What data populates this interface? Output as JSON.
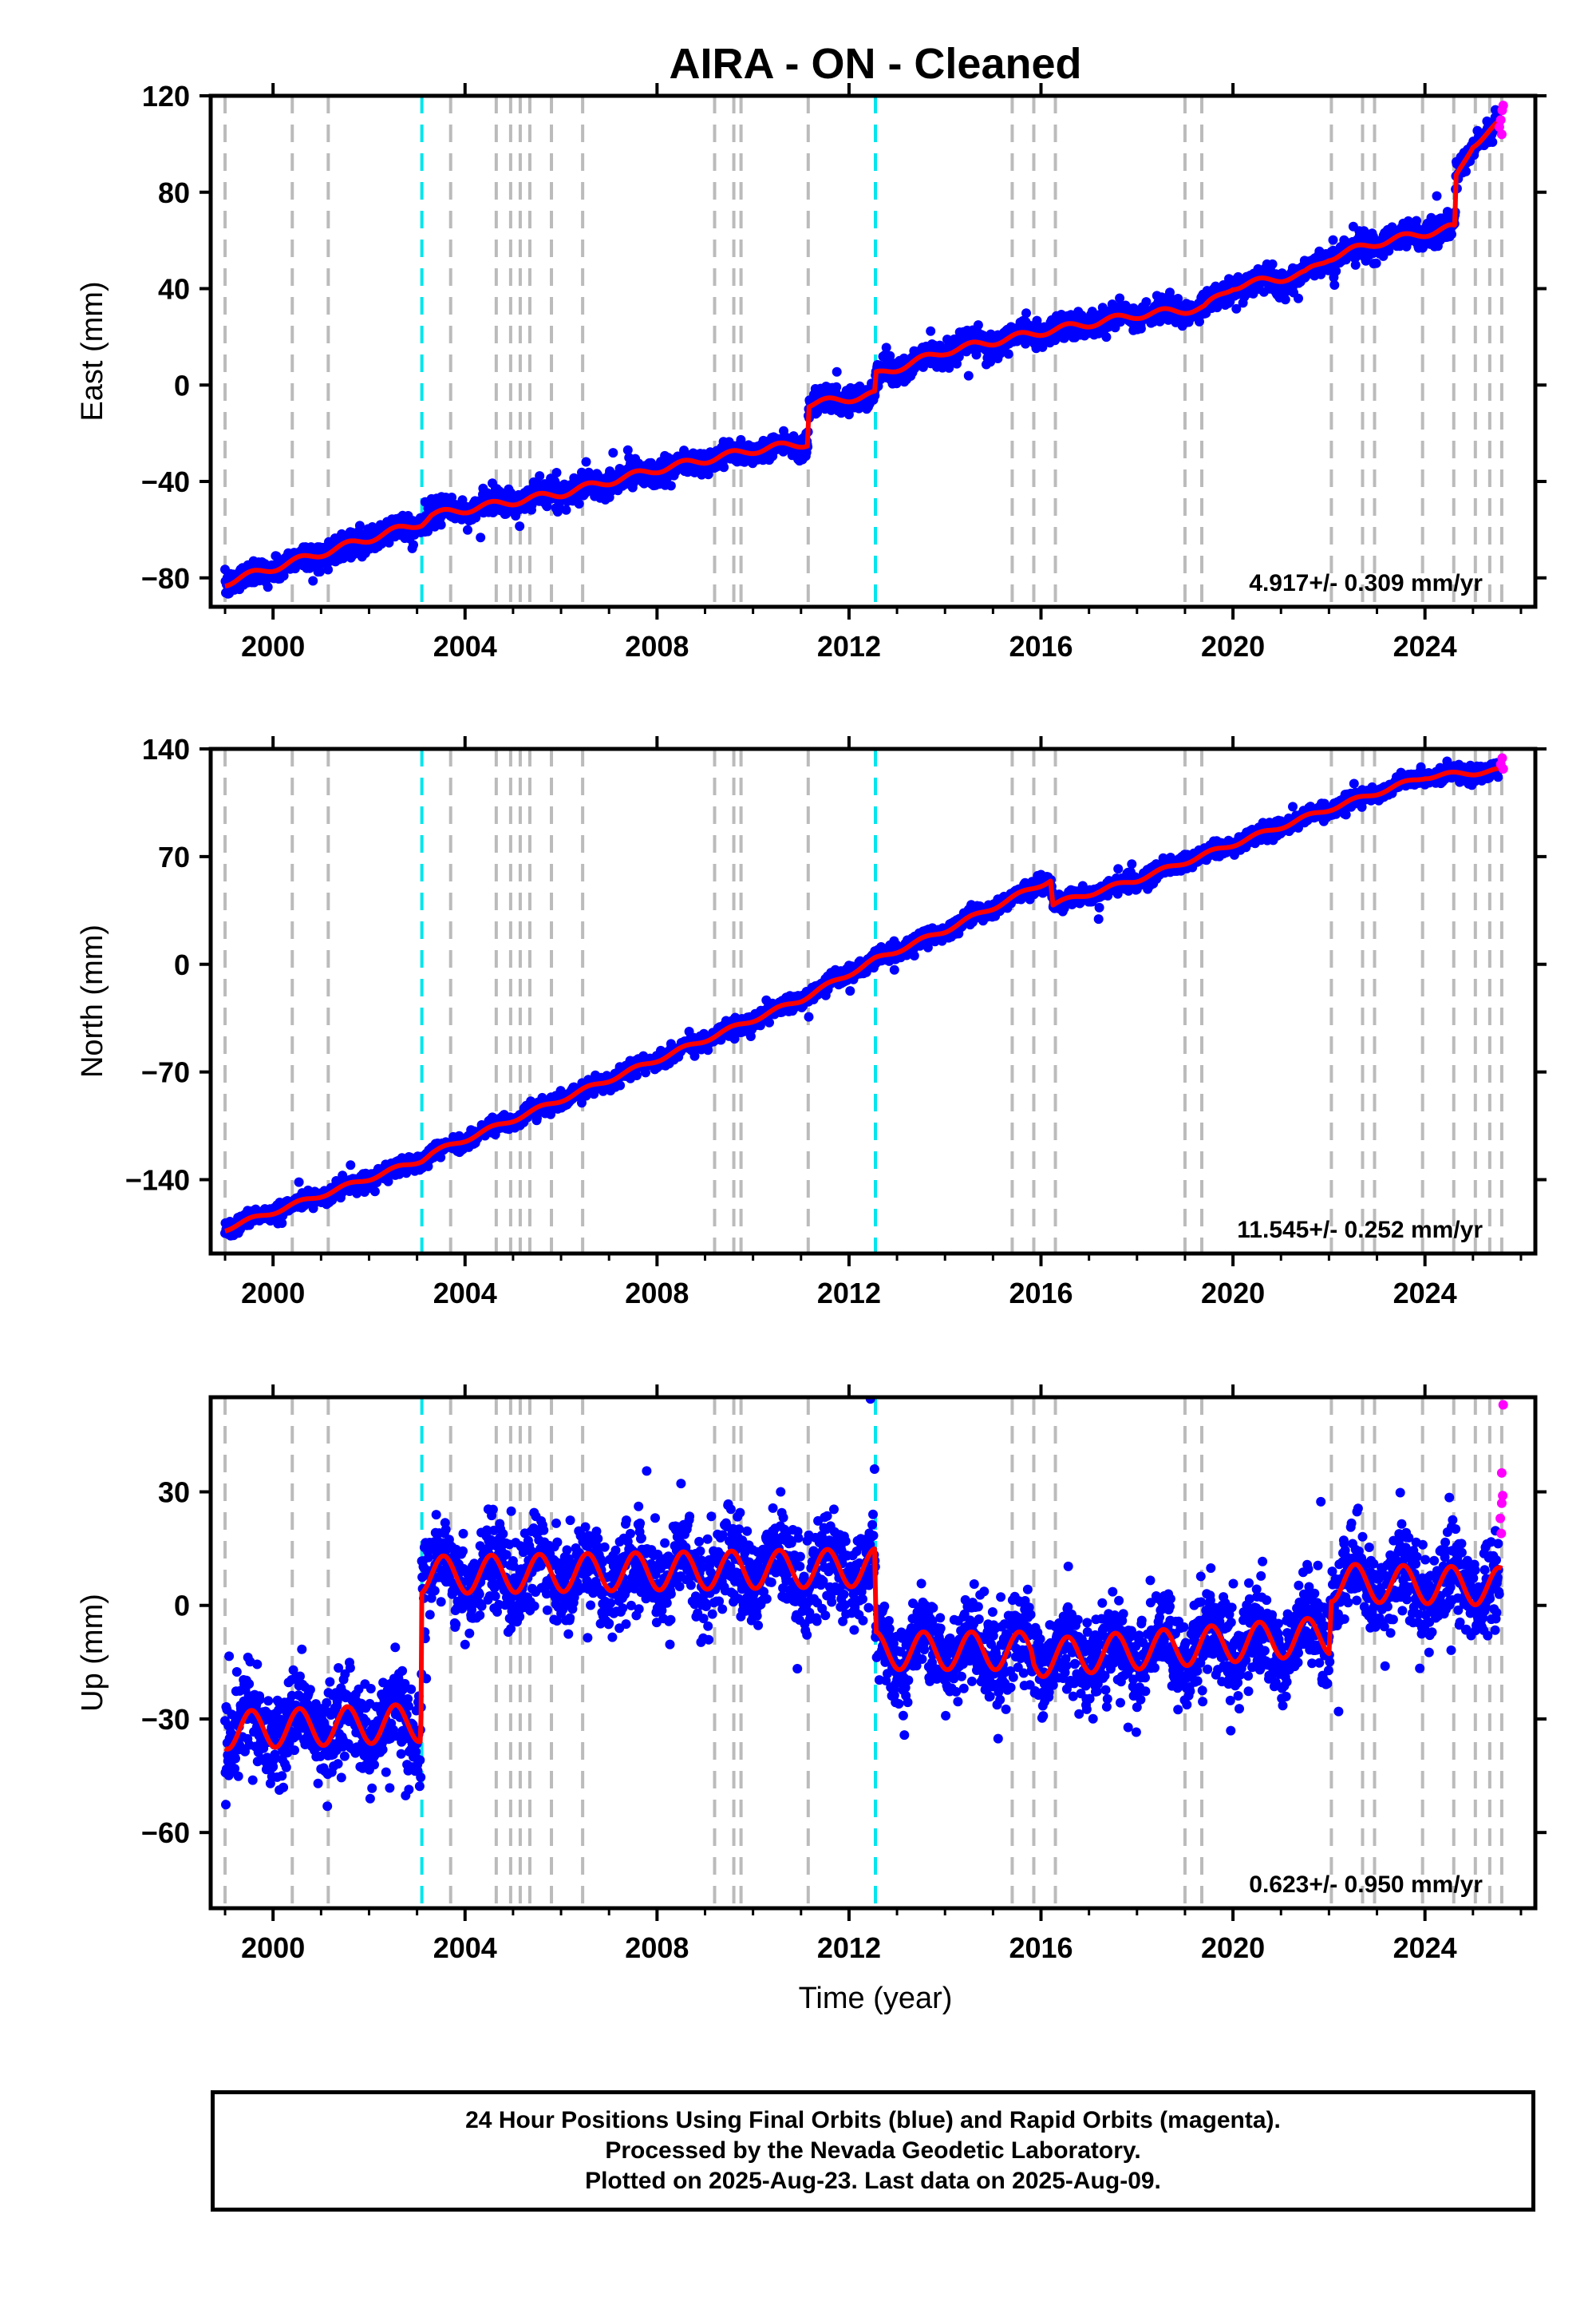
{
  "title": "AIRA  - ON - Cleaned",
  "xlabel": "Time (year)",
  "x_ticks": [
    2000,
    2004,
    2008,
    2012,
    2016,
    2020,
    2024
  ],
  "xlim": [
    1998.7,
    2026.3
  ],
  "colors": {
    "final_orbits": "#0000ff",
    "rapid_orbits": "#ff00ff",
    "model": "#ff0000",
    "equipment_change": "#bbbbbb",
    "earthquake": "#00e5ee"
  },
  "events": {
    "equipment_changes": [
      1999.0,
      2000.4,
      2001.15,
      2003.7,
      2004.65,
      2004.95,
      2005.15,
      2005.35,
      2005.8,
      2006.45,
      2009.2,
      2009.6,
      2009.75,
      2011.15,
      2015.4,
      2015.85,
      2016.3,
      2019.0,
      2019.35,
      2022.05,
      2022.7,
      2022.95,
      2023.95,
      2024.6,
      2025.05,
      2025.35,
      2025.6
    ],
    "earthquakes": [
      2003.1,
      2012.55
    ]
  },
  "footer": {
    "line1": "24 Hour Positions Using Final Orbits (blue) and Rapid Orbits (magenta).",
    "line2": "Processed by the Nevada Geodetic Laboratory.",
    "line3": "Plotted on 2025-Aug-23. Last data on 2025-Aug-09."
  },
  "chart_data": [
    {
      "type": "scatter",
      "component": "east",
      "ylabel": "East (mm)",
      "ylim": [
        -92,
        120
      ],
      "y_ticks": [
        -80,
        -40,
        0,
        40,
        80,
        120
      ],
      "rate_text": "4.917+/- 0.309 mm/yr",
      "noise_mm": 2.5,
      "seasonal_amp_mm": 1.5,
      "model_knots": [
        [
          1999.0,
          -82
        ],
        [
          2003.1,
          -57
        ],
        [
          2003.3,
          -54
        ],
        [
          2006.0,
          -45
        ],
        [
          2008.0,
          -35
        ],
        [
          2010.0,
          -27
        ],
        [
          2011.14,
          -24
        ],
        [
          2011.16,
          -8
        ],
        [
          2012.54,
          -4
        ],
        [
          2012.56,
          4
        ],
        [
          2014.0,
          14
        ],
        [
          2016.0,
          22
        ],
        [
          2018.0,
          29
        ],
        [
          2019.4,
          32
        ],
        [
          2020.0,
          41
        ],
        [
          2021.5,
          46
        ],
        [
          2022.0,
          53
        ],
        [
          2023.0,
          59
        ],
        [
          2024.5,
          65
        ],
        [
          2024.62,
          65
        ],
        [
          2024.65,
          86
        ],
        [
          2025.0,
          100
        ],
        [
          2025.6,
          109
        ]
      ],
      "rapid_points": [
        [
          2025.55,
          107
        ],
        [
          2025.58,
          110
        ],
        [
          2025.61,
          114
        ],
        [
          2025.63,
          116
        ],
        [
          2025.6,
          104
        ]
      ]
    },
    {
      "type": "scatter",
      "component": "north",
      "ylabel": "North (mm)",
      "ylim": [
        -188,
        140
      ],
      "y_ticks": [
        -140,
        -70,
        0,
        70,
        140
      ],
      "rate_text": "11.545+/- 0.252 mm/yr",
      "noise_mm": 2.5,
      "seasonal_amp_mm": 1.5,
      "model_knots": [
        [
          1999.0,
          -172
        ],
        [
          2003.1,
          -127
        ],
        [
          2003.3,
          -123
        ],
        [
          2008.0,
          -62
        ],
        [
          2011.0,
          -23
        ],
        [
          2012.55,
          3
        ],
        [
          2014.0,
          22
        ],
        [
          2016.2,
          55
        ],
        [
          2016.25,
          39
        ],
        [
          2018.0,
          55
        ],
        [
          2020.0,
          78
        ],
        [
          2022.0,
          101
        ],
        [
          2024.0,
          122
        ],
        [
          2025.6,
          126
        ]
      ],
      "rapid_points": [
        [
          2025.58,
          130
        ],
        [
          2025.61,
          134
        ],
        [
          2025.63,
          127
        ]
      ]
    },
    {
      "type": "scatter",
      "component": "up",
      "ylabel": "Up (mm)",
      "ylim": [
        -80,
        55
      ],
      "y_ticks": [
        -60,
        -30,
        0,
        30
      ],
      "rate_text": "0.623+/- 0.950 mm/yr",
      "noise_mm": 6,
      "seasonal_amp_mm": 5,
      "model_knots": [
        [
          1999.0,
          -33
        ],
        [
          2003.08,
          -31
        ],
        [
          2003.1,
          8
        ],
        [
          2012.54,
          10
        ],
        [
          2012.56,
          -12
        ],
        [
          2015.8,
          -12
        ],
        [
          2015.85,
          -14
        ],
        [
          2022.0,
          -8
        ],
        [
          2022.05,
          6
        ],
        [
          2025.6,
          5
        ]
      ],
      "rapid_points": [
        [
          2025.57,
          23
        ],
        [
          2025.6,
          27
        ],
        [
          2025.62,
          29
        ],
        [
          2025.6,
          35
        ],
        [
          2025.63,
          53
        ],
        [
          2025.59,
          19
        ]
      ]
    }
  ]
}
